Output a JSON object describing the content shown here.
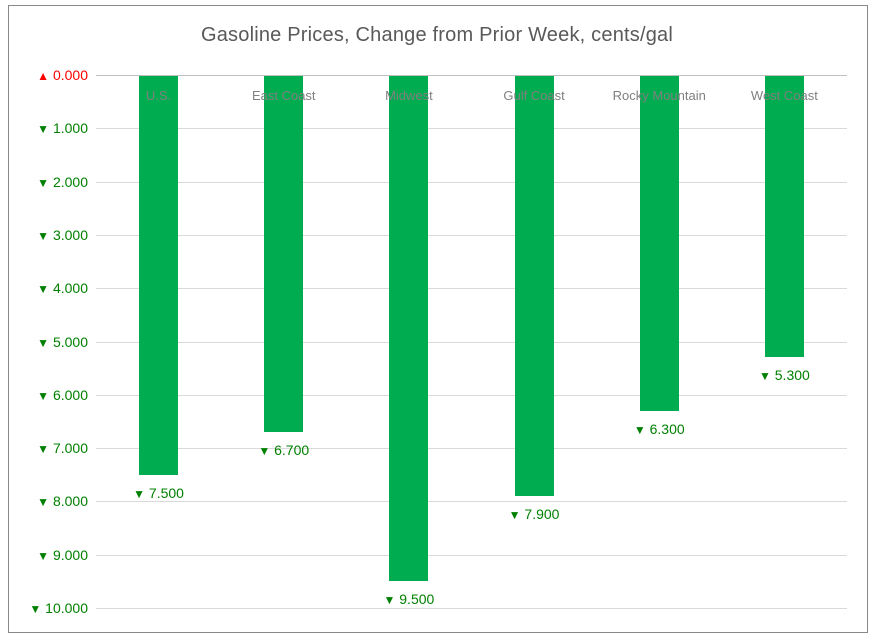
{
  "chart_data": {
    "type": "bar",
    "title": "Gasoline Prices, Change from Prior Week, cents/gal",
    "categories": [
      "U.S.",
      "East Coast",
      "Midwest",
      "Gulf Coast",
      "Rocky Mountain",
      "West Coast"
    ],
    "series": [
      {
        "name": "Change from prior week (cents/gal)",
        "values": [
          -7.5,
          -6.7,
          -9.5,
          -7.9,
          -6.3,
          -5.3
        ]
      }
    ],
    "data_labels": [
      "7.500",
      "6.700",
      "9.500",
      "7.900",
      "6.300",
      "5.300"
    ],
    "data_label_direction": "down",
    "xlabel": "",
    "ylabel": "",
    "grid": true,
    "legend": "none",
    "y_axis": {
      "max": 0,
      "min": -10,
      "tick_interval": 1,
      "ticks": [
        {
          "value": 0,
          "label": "0.000",
          "direction": "up"
        },
        {
          "value": -1,
          "label": "1.000",
          "direction": "down"
        },
        {
          "value": -2,
          "label": "2.000",
          "direction": "down"
        },
        {
          "value": -3,
          "label": "3.000",
          "direction": "down"
        },
        {
          "value": -4,
          "label": "4.000",
          "direction": "down"
        },
        {
          "value": -5,
          "label": "5.000",
          "direction": "down"
        },
        {
          "value": -6,
          "label": "6.000",
          "direction": "down"
        },
        {
          "value": -7,
          "label": "7.000",
          "direction": "down"
        },
        {
          "value": -8,
          "label": "8.000",
          "direction": "down"
        },
        {
          "value": -9,
          "label": "9.000",
          "direction": "down"
        },
        {
          "value": -10,
          "label": "10.000",
          "direction": "down"
        }
      ]
    },
    "icons": {
      "up": "▲",
      "down": "▼"
    },
    "colors": {
      "bar": "#00AC50",
      "positive_tick": "#FF0000",
      "negative_tick": "#008000",
      "data_label": "#008000",
      "title": "#595959",
      "category_label": "#808080",
      "gridline": "#D9D9D9",
      "axis_line": "#C0C0C0",
      "border": "#898989"
    }
  }
}
